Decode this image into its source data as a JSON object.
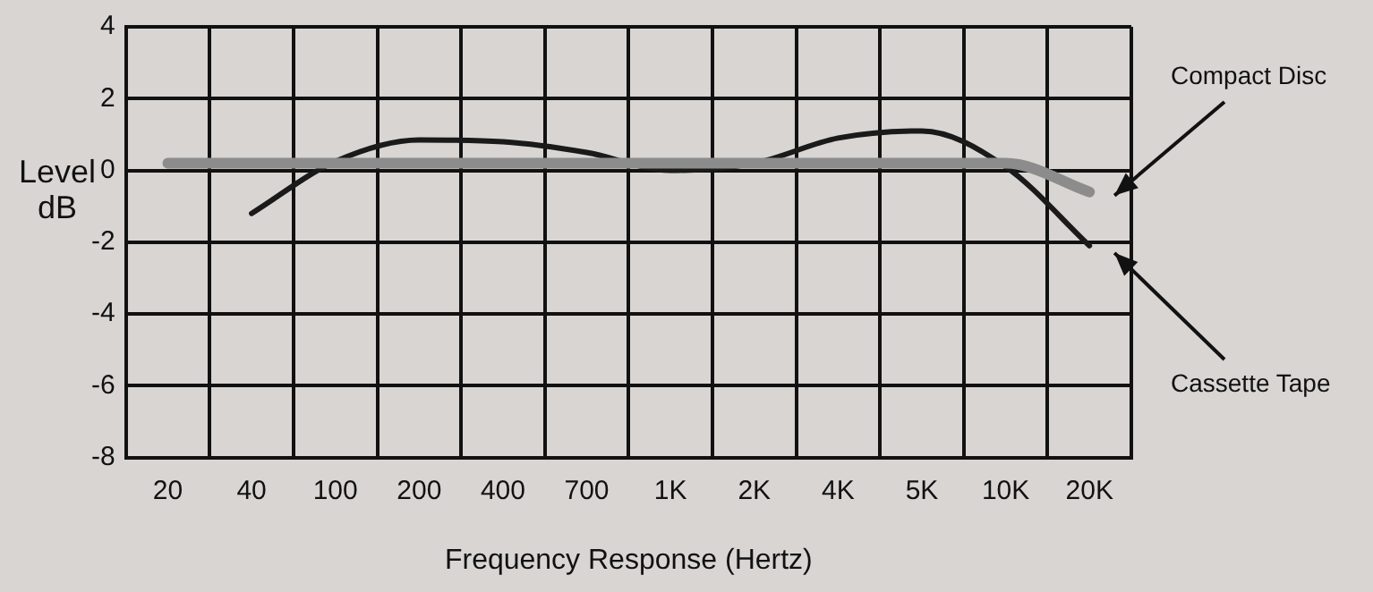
{
  "chart_data": {
    "type": "line",
    "xlabel": "Frequency Response (Hertz)",
    "ylabel": "Level dB",
    "categories": [
      "20",
      "40",
      "100",
      "200",
      "400",
      "700",
      "1K",
      "2K",
      "4K",
      "5K",
      "10K",
      "20K"
    ],
    "series": [
      {
        "name": "Compact Disc",
        "color": "#8c8c8c",
        "values": [
          0.2,
          0.2,
          0.2,
          0.2,
          0.2,
          0.2,
          0.2,
          0.2,
          0.2,
          0.2,
          0.2,
          -0.6
        ]
      },
      {
        "name": "Cassette Tape",
        "color": "#1a1a1a",
        "values": [
          null,
          -1.2,
          0.25,
          0.85,
          0.8,
          0.5,
          0.0,
          0.2,
          0.9,
          1.1,
          0.1,
          -2.1
        ]
      }
    ],
    "ylim": [
      -8,
      4
    ],
    "yticks": [
      4,
      2,
      0,
      -2,
      -4,
      -6,
      -8
    ],
    "grid": true,
    "legend": false,
    "marker": "none",
    "line_style": "solid"
  }
}
